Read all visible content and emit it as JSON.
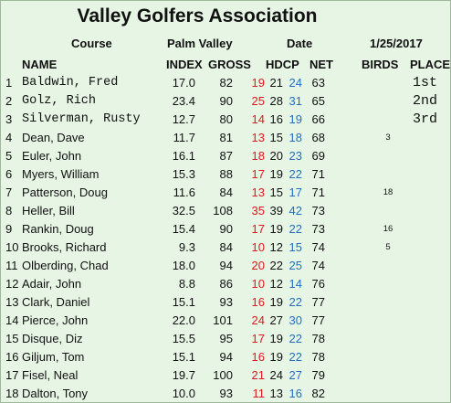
{
  "title": "Valley Golfers Association",
  "header": {
    "course_label": "Course",
    "course_value": "Palm Valley",
    "date_label": "Date",
    "date_value": "1/25/2017"
  },
  "columns": {
    "name": "NAME",
    "index": "INDEX",
    "gross": "GROSS",
    "hdcp": "HDCP",
    "net": "NET",
    "birds": "BIRDS",
    "place": "PLACE"
  },
  "colors": {
    "background": "#e6f5e4",
    "hdcp_red": "#e0181e",
    "hdcp_blue": "#1f6fc5",
    "text": "#111111"
  },
  "rows": [
    {
      "num": "1",
      "name": "Baldwin, Fred",
      "index": "17.0",
      "gross": "82",
      "h1": "19",
      "h2": "21",
      "h3": "24",
      "net": "63",
      "birds": "",
      "place": "1st"
    },
    {
      "num": "2",
      "name": "Golz, Rich",
      "index": "23.4",
      "gross": "90",
      "h1": "25",
      "h2": "28",
      "h3": "31",
      "net": "65",
      "birds": "",
      "place": "2nd"
    },
    {
      "num": "3",
      "name": "Silverman, Rusty",
      "index": "12.7",
      "gross": "80",
      "h1": "14",
      "h2": "16",
      "h3": "19",
      "net": "66",
      "birds": "",
      "place": "3rd"
    },
    {
      "num": "4",
      "name": "Dean, Dave",
      "index": "11.7",
      "gross": "81",
      "h1": "13",
      "h2": "15",
      "h3": "18",
      "net": "68",
      "birds": "3",
      "place": ""
    },
    {
      "num": "5",
      "name": "Euler, John",
      "index": "16.1",
      "gross": "87",
      "h1": "18",
      "h2": "20",
      "h3": "23",
      "net": "69",
      "birds": "",
      "place": ""
    },
    {
      "num": "6",
      "name": "Myers, William",
      "index": "15.3",
      "gross": "88",
      "h1": "17",
      "h2": "19",
      "h3": "22",
      "net": "71",
      "birds": "",
      "place": ""
    },
    {
      "num": "7",
      "name": "Patterson, Doug",
      "index": "11.6",
      "gross": "84",
      "h1": "13",
      "h2": "15",
      "h3": "17",
      "net": "71",
      "birds": "18",
      "place": ""
    },
    {
      "num": "8",
      "name": "Heller, Bill",
      "index": "32.5",
      "gross": "108",
      "h1": "35",
      "h2": "39",
      "h3": "42",
      "net": "73",
      "birds": "",
      "place": ""
    },
    {
      "num": "9",
      "name": "Rankin, Doug",
      "index": "15.4",
      "gross": "90",
      "h1": "17",
      "h2": "19",
      "h3": "22",
      "net": "73",
      "birds": "16",
      "place": ""
    },
    {
      "num": "10",
      "name": "Brooks, Richard",
      "index": "9.3",
      "gross": "84",
      "h1": "10",
      "h2": "12",
      "h3": "15",
      "net": "74",
      "birds": "5",
      "place": ""
    },
    {
      "num": "11",
      "name": "Olberding, Chad",
      "index": "18.0",
      "gross": "94",
      "h1": "20",
      "h2": "22",
      "h3": "25",
      "net": "74",
      "birds": "",
      "place": ""
    },
    {
      "num": "12",
      "name": "Adair, John",
      "index": "8.8",
      "gross": "86",
      "h1": "10",
      "h2": "12",
      "h3": "14",
      "net": "76",
      "birds": "",
      "place": ""
    },
    {
      "num": "13",
      "name": "Clark, Daniel",
      "index": "15.1",
      "gross": "93",
      "h1": "16",
      "h2": "19",
      "h3": "22",
      "net": "77",
      "birds": "",
      "place": ""
    },
    {
      "num": "14",
      "name": "Pierce, John",
      "index": "22.0",
      "gross": "101",
      "h1": "24",
      "h2": "27",
      "h3": "30",
      "net": "77",
      "birds": "",
      "place": ""
    },
    {
      "num": "15",
      "name": "Disque, Diz",
      "index": "15.5",
      "gross": "95",
      "h1": "17",
      "h2": "19",
      "h3": "22",
      "net": "78",
      "birds": "",
      "place": ""
    },
    {
      "num": "16",
      "name": "Giljum, Tom",
      "index": "15.1",
      "gross": "94",
      "h1": "16",
      "h2": "19",
      "h3": "22",
      "net": "78",
      "birds": "",
      "place": ""
    },
    {
      "num": "17",
      "name": "Fisel, Neal",
      "index": "19.7",
      "gross": "100",
      "h1": "21",
      "h2": "24",
      "h3": "27",
      "net": "79",
      "birds": "",
      "place": ""
    },
    {
      "num": "18",
      "name": "Dalton, Tony",
      "index": "10.0",
      "gross": "93",
      "h1": "11",
      "h2": "13",
      "h3": "16",
      "net": "82",
      "birds": "",
      "place": ""
    }
  ]
}
